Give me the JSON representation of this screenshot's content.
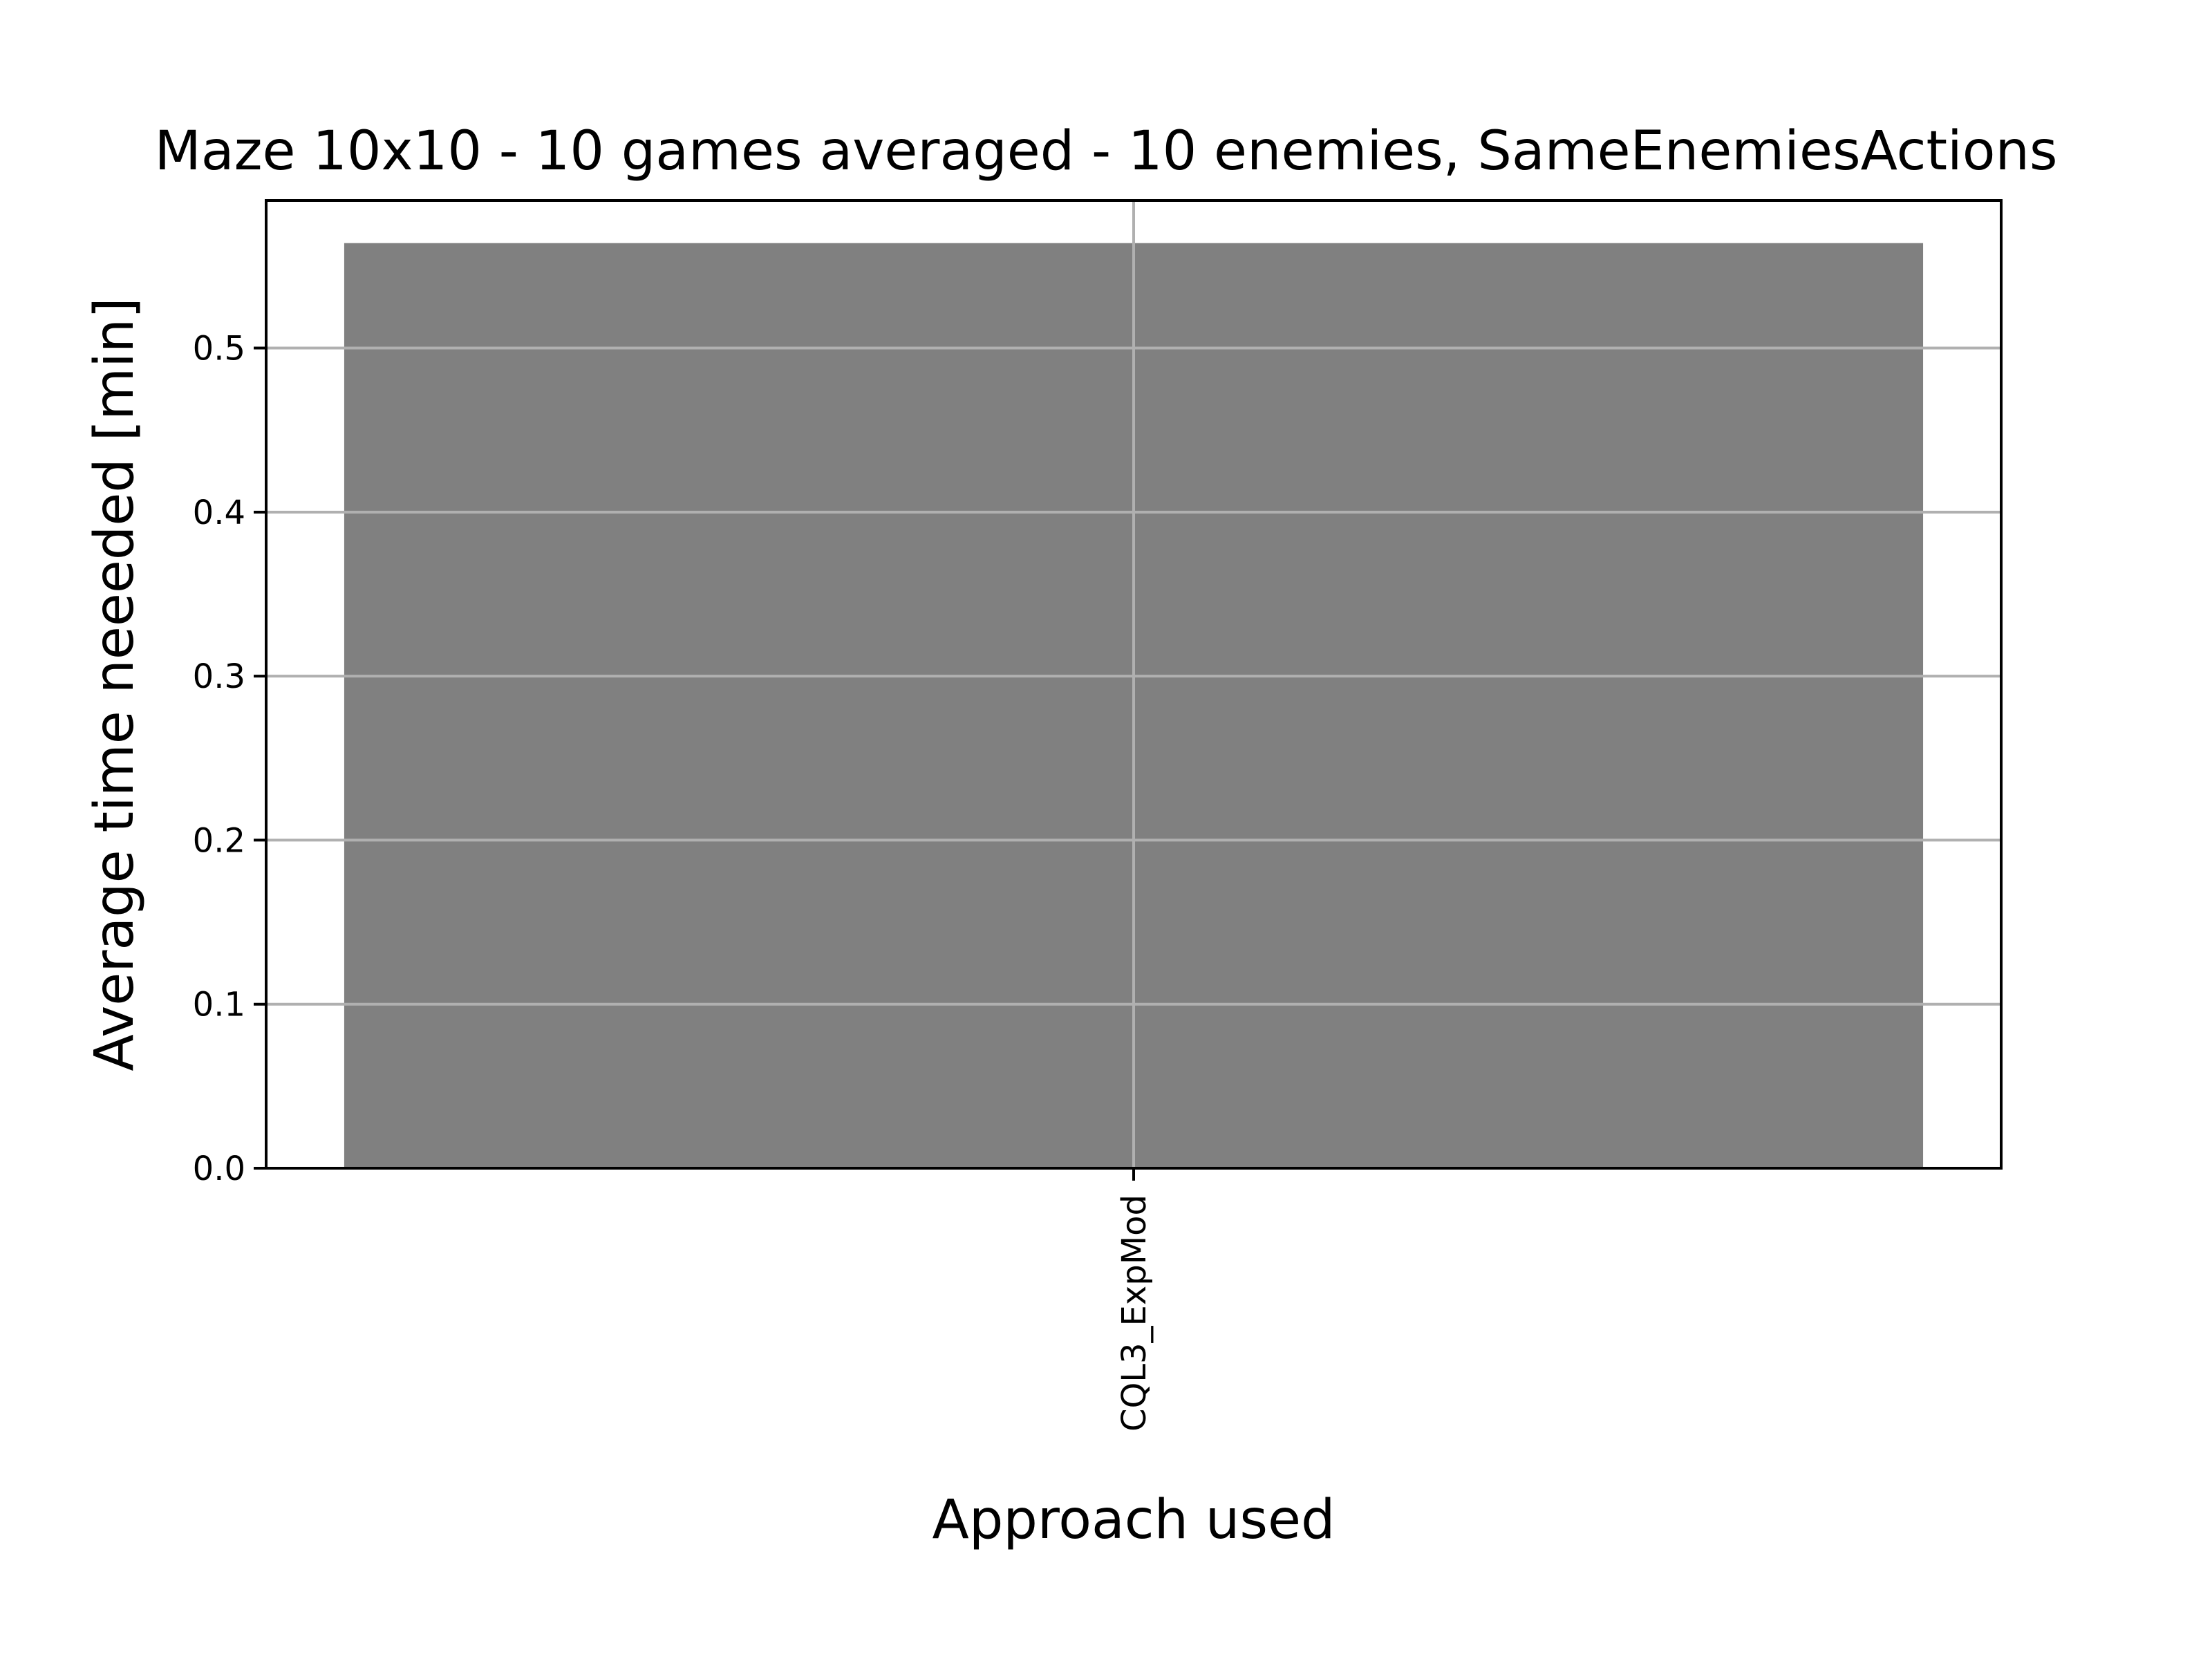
{
  "chart_data": {
    "type": "bar",
    "title": "Maze 10x10 - 10 games averaged - 10 enemies, SameEnemiesActions",
    "xlabel": "Approach used",
    "ylabel": "Average time neeeded [min]",
    "categories": [
      "CQL3_ExpMod"
    ],
    "values": [
      0.564
    ],
    "ylim": [
      0,
      0.59
    ],
    "yticks": [
      0.0,
      0.1,
      0.2,
      0.3,
      0.4,
      0.5
    ],
    "grid": true,
    "bar_color": "#808080",
    "grid_color": "#b0b0b0"
  }
}
